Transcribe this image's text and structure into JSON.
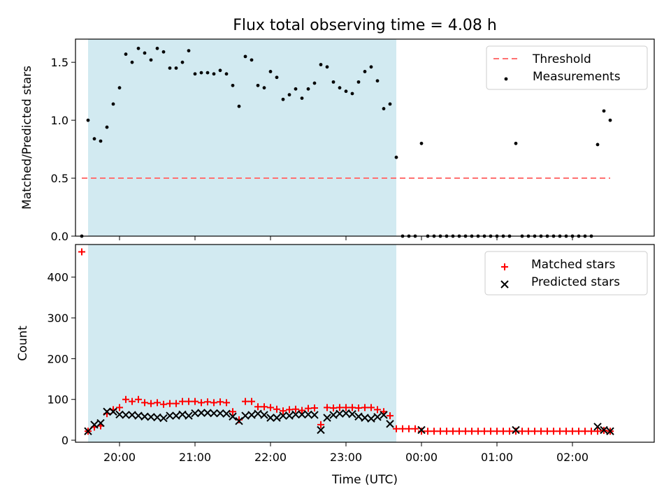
{
  "chart_data": {
    "title": "Flux total observing time = 4.08 h",
    "xlabel": "Time (UTC)",
    "x_ticks": [
      "20:00",
      "21:00",
      "22:00",
      "23:00",
      "00:00",
      "01:00",
      "02:00"
    ],
    "x_range": [
      "19:25",
      "03:05"
    ],
    "shaded_interval": [
      "19:35",
      "23:40"
    ],
    "shade_color": "#add8e6",
    "panels": [
      {
        "type": "scatter",
        "ylabel": "Matched/Predicted stars",
        "ylim": [
          0,
          1.7
        ],
        "y_ticks": [
          "0.0",
          "0.5",
          "1.0",
          "1.5"
        ],
        "legend_position": "upper right",
        "threshold": {
          "name": "Threshold",
          "value": 0.5,
          "x_range": [
            "19:30",
            "02:30"
          ],
          "color": "#ff7070"
        },
        "series": [
          {
            "name": "Measurements",
            "color": "#000000",
            "marker": "dot",
            "x": [
              "19:30",
              "19:35",
              "19:40",
              "19:45",
              "19:50",
              "19:55",
              "20:00",
              "20:05",
              "20:10",
              "20:15",
              "20:20",
              "20:25",
              "20:30",
              "20:35",
              "20:40",
              "20:45",
              "20:50",
              "20:55",
              "21:00",
              "21:05",
              "21:10",
              "21:15",
              "21:20",
              "21:25",
              "21:30",
              "21:35",
              "21:40",
              "21:45",
              "21:50",
              "21:55",
              "22:00",
              "22:05",
              "22:10",
              "22:15",
              "22:20",
              "22:25",
              "22:30",
              "22:35",
              "22:40",
              "22:45",
              "22:50",
              "22:55",
              "23:00",
              "23:05",
              "23:10",
              "23:15",
              "23:20",
              "23:25",
              "23:30",
              "23:35",
              "23:40",
              "23:45",
              "23:50",
              "23:55",
              "00:00",
              "00:05",
              "00:10",
              "00:15",
              "00:20",
              "00:25",
              "00:30",
              "00:35",
              "00:40",
              "00:45",
              "00:50",
              "00:55",
              "01:00",
              "01:05",
              "01:10",
              "01:15",
              "01:20",
              "01:25",
              "01:30",
              "01:35",
              "01:40",
              "01:45",
              "01:50",
              "01:55",
              "02:00",
              "02:05",
              "02:10",
              "02:15",
              "02:20",
              "02:25",
              "02:30"
            ],
            "y": [
              0.0,
              1.0,
              0.84,
              0.82,
              0.94,
              1.14,
              1.28,
              1.57,
              1.5,
              1.62,
              1.58,
              1.52,
              1.62,
              1.59,
              1.45,
              1.45,
              1.5,
              1.6,
              1.4,
              1.41,
              1.41,
              1.4,
              1.43,
              1.4,
              1.3,
              1.12,
              1.55,
              1.52,
              1.3,
              1.28,
              1.42,
              1.37,
              1.18,
              1.22,
              1.27,
              1.19,
              1.27,
              1.32,
              1.48,
              1.46,
              1.33,
              1.28,
              1.25,
              1.23,
              1.33,
              1.42,
              1.46,
              1.34,
              1.1,
              1.14,
              0.68,
              0.0,
              0.0,
              0.0,
              0.8,
              0.0,
              0.0,
              0.0,
              0.0,
              0.0,
              0.0,
              0.0,
              0.0,
              0.0,
              0.0,
              0.0,
              0.0,
              0.0,
              0.0,
              0.8,
              0.0,
              0.0,
              0.0,
              0.0,
              0.0,
              0.0,
              0.0,
              0.0,
              0.0,
              0.0,
              0.0,
              0.0,
              0.79,
              1.08,
              1.0
            ]
          }
        ]
      },
      {
        "type": "scatter",
        "ylabel": "Count",
        "ylim": [
          -5,
          480
        ],
        "y_ticks": [
          "0",
          "100",
          "200",
          "300",
          "400"
        ],
        "legend_position": "upper right",
        "series": [
          {
            "name": "Matched stars",
            "color": "#ff0000",
            "marker": "plus",
            "x": [
              "19:30",
              "19:35",
              "19:40",
              "19:45",
              "19:50",
              "19:55",
              "20:00",
              "20:05",
              "20:10",
              "20:15",
              "20:20",
              "20:25",
              "20:30",
              "20:35",
              "20:40",
              "20:45",
              "20:50",
              "20:55",
              "21:00",
              "21:05",
              "21:10",
              "21:15",
              "21:20",
              "21:25",
              "21:30",
              "21:35",
              "21:40",
              "21:45",
              "21:50",
              "21:55",
              "22:00",
              "22:05",
              "22:10",
              "22:15",
              "22:20",
              "22:25",
              "22:30",
              "22:35",
              "22:40",
              "22:45",
              "22:50",
              "22:55",
              "23:00",
              "23:05",
              "23:10",
              "23:15",
              "23:20",
              "23:25",
              "23:30",
              "23:35",
              "23:40",
              "23:45",
              "23:50",
              "23:55",
              "00:00",
              "00:05",
              "00:10",
              "00:15",
              "00:20",
              "00:25",
              "00:30",
              "00:35",
              "00:40",
              "00:45",
              "00:50",
              "00:55",
              "01:00",
              "01:05",
              "01:10",
              "01:15",
              "01:20",
              "01:25",
              "01:30",
              "01:35",
              "01:40",
              "01:45",
              "01:50",
              "01:55",
              "02:00",
              "02:05",
              "02:10",
              "02:15",
              "02:20",
              "02:25",
              "02:30"
            ],
            "y": [
              462,
              22,
              32,
              35,
              65,
              75,
              80,
              100,
              95,
              100,
              92,
              90,
              92,
              88,
              90,
              90,
              95,
              95,
              95,
              92,
              94,
              92,
              94,
              92,
              70,
              50,
              95,
              95,
              82,
              82,
              80,
              76,
              72,
              75,
              76,
              73,
              78,
              79,
              38,
              80,
              79,
              80,
              80,
              80,
              79,
              80,
              80,
              75,
              70,
              60,
              28,
              28,
              28,
              28,
              22,
              22,
              22,
              22,
              22,
              22,
              22,
              22,
              22,
              22,
              22,
              22,
              22,
              22,
              22,
              22,
              22,
              22,
              22,
              22,
              22,
              22,
              22,
              22,
              22,
              22,
              22,
              22,
              22,
              24,
              22
            ]
          },
          {
            "name": "Predicted stars",
            "color": "#000000",
            "marker": "x",
            "x": [
              "19:35",
              "19:40",
              "19:45",
              "19:50",
              "19:55",
              "20:00",
              "20:05",
              "20:10",
              "20:15",
              "20:20",
              "20:25",
              "20:30",
              "20:35",
              "20:40",
              "20:45",
              "20:50",
              "20:55",
              "21:00",
              "21:05",
              "21:10",
              "21:15",
              "21:20",
              "21:25",
              "21:30",
              "21:35",
              "21:40",
              "21:45",
              "21:50",
              "21:55",
              "22:00",
              "22:05",
              "22:10",
              "22:15",
              "22:20",
              "22:25",
              "22:30",
              "22:35",
              "22:40",
              "22:45",
              "22:50",
              "22:55",
              "23:00",
              "23:05",
              "23:10",
              "23:15",
              "23:20",
              "23:25",
              "23:30",
              "23:35",
              "23:40",
              "00:00",
              "01:15",
              "02:20",
              "02:25",
              "02:30"
            ],
            "y": [
              22,
              38,
              42,
              70,
              70,
              63,
              62,
              62,
              60,
              58,
              57,
              56,
              54,
              60,
              60,
              63,
              60,
              66,
              67,
              67,
              66,
              66,
              65,
              58,
              47,
              60,
              62,
              65,
              62,
              55,
              55,
              60,
              60,
              63,
              63,
              63,
              62,
              25,
              55,
              62,
              65,
              66,
              64,
              58,
              55,
              53,
              57,
              62,
              40,
              null,
              25,
              25,
              33,
              25,
              22
            ]
          }
        ]
      }
    ]
  }
}
